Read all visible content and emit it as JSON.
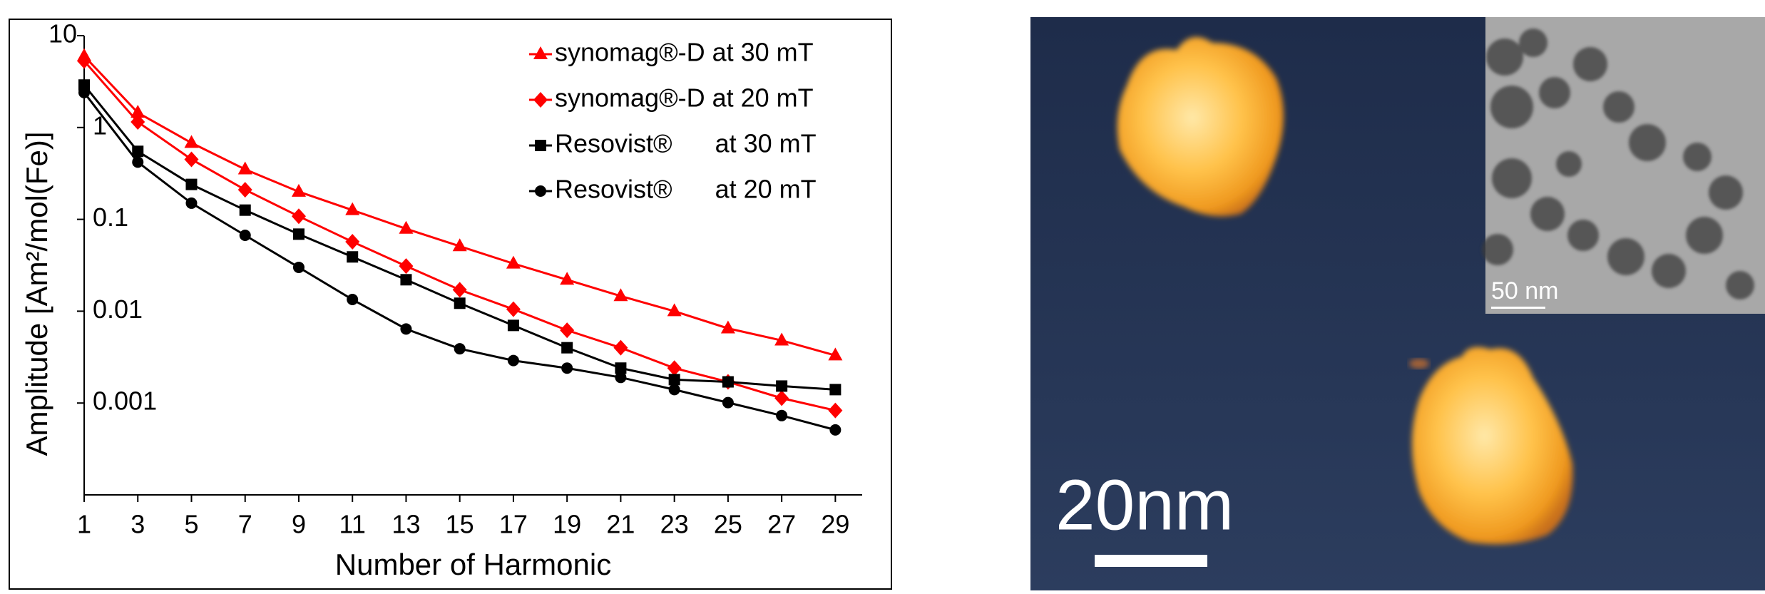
{
  "chart_data": {
    "type": "line",
    "x_label": "Number of Harmonic",
    "y_label": "Amplitude [Am²/mol(Fe)]",
    "x": [
      1,
      3,
      5,
      7,
      9,
      11,
      13,
      15,
      17,
      19,
      21,
      23,
      25,
      27,
      29
    ],
    "xlim": [
      1,
      30
    ],
    "xticks": [
      1,
      3,
      5,
      7,
      9,
      11,
      13,
      15,
      17,
      19,
      21,
      23,
      25,
      27,
      29
    ],
    "ylim": [
      0.0001,
      10
    ],
    "yticks": [
      0.001,
      0.01,
      0.1,
      1,
      10
    ],
    "yscale": "log",
    "legend": "upper right",
    "series": [
      {
        "name": "synomag®-D at 30 mT",
        "color": "#ff0000",
        "marker": "triangle",
        "values": [
          6.0,
          1.45,
          0.68,
          0.35,
          0.2,
          0.126,
          0.079,
          0.051,
          0.033,
          0.022,
          0.0146,
          0.01,
          0.0065,
          0.0048,
          0.0033
        ]
      },
      {
        "name": "synomag®-D at 20 mT",
        "color": "#ff0000",
        "marker": "diamond",
        "values": [
          5.3,
          1.15,
          0.45,
          0.21,
          0.108,
          0.057,
          0.031,
          0.0171,
          0.0105,
          0.0062,
          0.004,
          0.0024,
          0.0017,
          0.00113,
          0.00083
        ]
      },
      {
        "name": "Resovist®      at 30 mT",
        "color": "#000000",
        "marker": "square",
        "values": [
          2.9,
          0.55,
          0.24,
          0.126,
          0.069,
          0.039,
          0.022,
          0.0122,
          0.007,
          0.004,
          0.0024,
          0.0018,
          0.0017,
          0.00153,
          0.0014
        ]
      },
      {
        "name": "Resovist®      at 20 mT",
        "color": "#000000",
        "marker": "circle",
        "values": [
          2.4,
          0.42,
          0.15,
          0.067,
          0.03,
          0.0134,
          0.0064,
          0.0039,
          0.0029,
          0.0024,
          0.0019,
          0.0014,
          0.00101,
          0.00073,
          0.00051
        ]
      }
    ]
  },
  "image": {
    "scale_bar_main": "20nm",
    "scale_bar_inset": "50 nm"
  }
}
